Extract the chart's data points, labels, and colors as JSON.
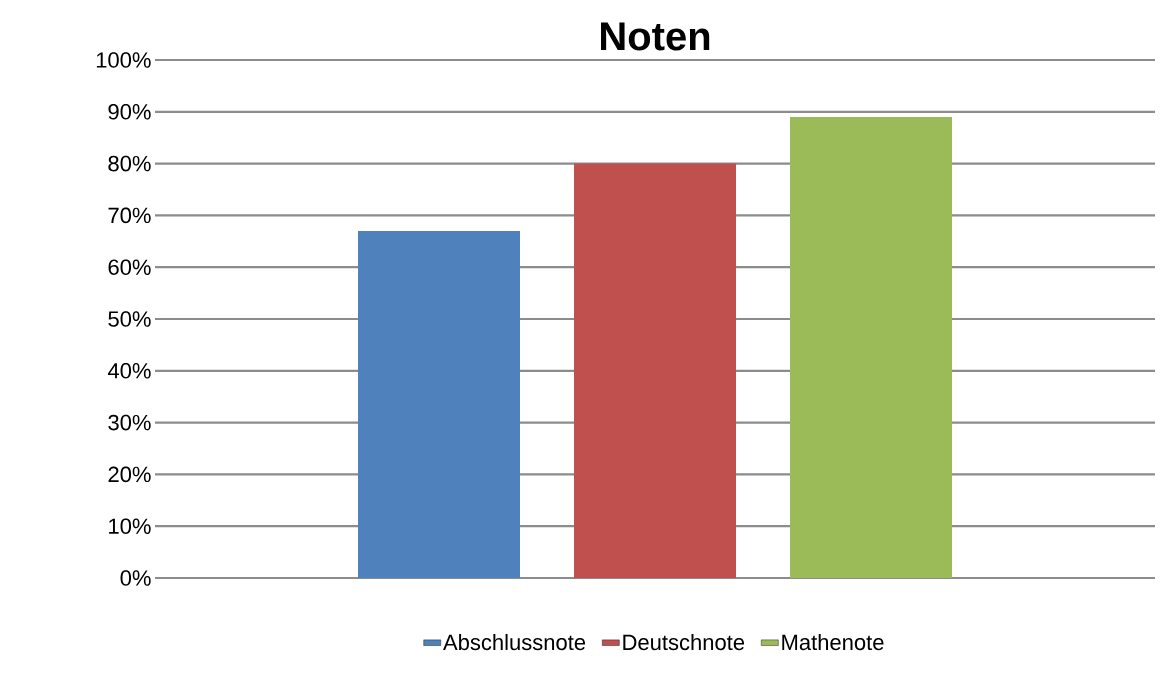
{
  "chart_data": {
    "type": "bar",
    "title": "Noten",
    "categories": [
      null
    ],
    "series": [
      {
        "name": "Abschlussnote",
        "color": "#4f81bd",
        "values": [
          67
        ]
      },
      {
        "name": "Deutschnote",
        "color": "#c0504d",
        "values": [
          80
        ]
      },
      {
        "name": "Mathenote",
        "color": "#9bbb59",
        "values": [
          89
        ]
      }
    ],
    "ylim": [
      0,
      100
    ],
    "yticks": [
      {
        "value": 0,
        "label": "0%"
      },
      {
        "value": 10,
        "label": "10%"
      },
      {
        "value": 20,
        "label": "20%"
      },
      {
        "value": 30,
        "label": "30%"
      },
      {
        "value": 40,
        "label": "40%"
      },
      {
        "value": 50,
        "label": "50%"
      },
      {
        "value": 60,
        "label": "60%"
      },
      {
        "value": 70,
        "label": "70%"
      },
      {
        "value": 80,
        "label": "80%"
      },
      {
        "value": 90,
        "label": "90%"
      },
      {
        "value": 100,
        "label": "100%"
      }
    ],
    "grid": "y",
    "legend": "bottom"
  }
}
